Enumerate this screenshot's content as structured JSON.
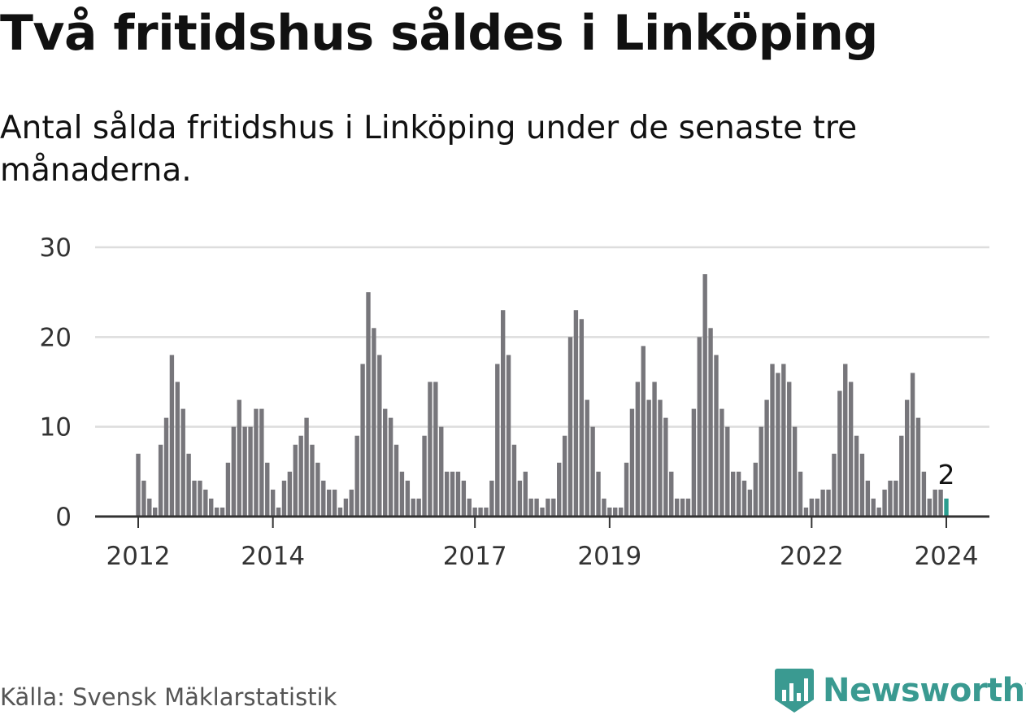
{
  "title": "Två fritidshus såldes i Linköping",
  "subtitle": "Antal sålda fritidshus i Linköping under de senaste tre månaderna.",
  "source": "Källa: Svensk Mäklarstatistik",
  "logo": {
    "name": "Newsworthy",
    "icon": "newsworthy-logo-icon",
    "color": "#3a9a91"
  },
  "colors": {
    "bar": "#77767b",
    "highlight": "#2a9d8f",
    "grid": "#dddddd",
    "axis": "#333333"
  },
  "chart_data": {
    "type": "bar",
    "title": "Två fritidshus såldes i Linköping",
    "subtitle": "Antal sålda fritidshus i Linköping under de senaste tre månaderna.",
    "xlabel": "",
    "ylabel": "",
    "ylim": [
      0,
      30
    ],
    "yticks": [
      0,
      10,
      20,
      30
    ],
    "xtick_labels": [
      "2012",
      "2014",
      "2017",
      "2019",
      "2022",
      "2024"
    ],
    "xtick_index": [
      0,
      24,
      60,
      84,
      120,
      144
    ],
    "grid": true,
    "highlight_index": 144,
    "highlight_label": "2",
    "start": "2012-01",
    "end": "2024-01",
    "frequency": "monthly",
    "values": [
      7,
      4,
      2,
      1,
      8,
      11,
      18,
      15,
      12,
      7,
      4,
      4,
      3,
      2,
      1,
      1,
      6,
      10,
      13,
      10,
      10,
      12,
      12,
      6,
      3,
      1,
      4,
      5,
      8,
      9,
      11,
      8,
      6,
      4,
      3,
      3,
      1,
      2,
      3,
      9,
      17,
      25,
      21,
      18,
      12,
      11,
      8,
      5,
      4,
      2,
      2,
      9,
      15,
      15,
      10,
      5,
      5,
      5,
      4,
      2,
      1,
      1,
      1,
      4,
      17,
      23,
      18,
      8,
      4,
      5,
      2,
      2,
      1,
      2,
      2,
      6,
      9,
      20,
      23,
      22,
      13,
      10,
      5,
      2,
      1,
      1,
      1,
      6,
      12,
      15,
      19,
      13,
      15,
      13,
      11,
      5,
      2,
      2,
      2,
      12,
      20,
      27,
      21,
      18,
      12,
      10,
      5,
      5,
      4,
      3,
      6,
      10,
      13,
      17,
      16,
      17,
      15,
      10,
      5,
      1,
      2,
      2,
      3,
      3,
      7,
      14,
      17,
      15,
      9,
      7,
      4,
      2,
      1,
      3,
      4,
      4,
      9,
      13,
      16,
      11,
      5,
      2,
      3,
      3,
      2
    ]
  }
}
